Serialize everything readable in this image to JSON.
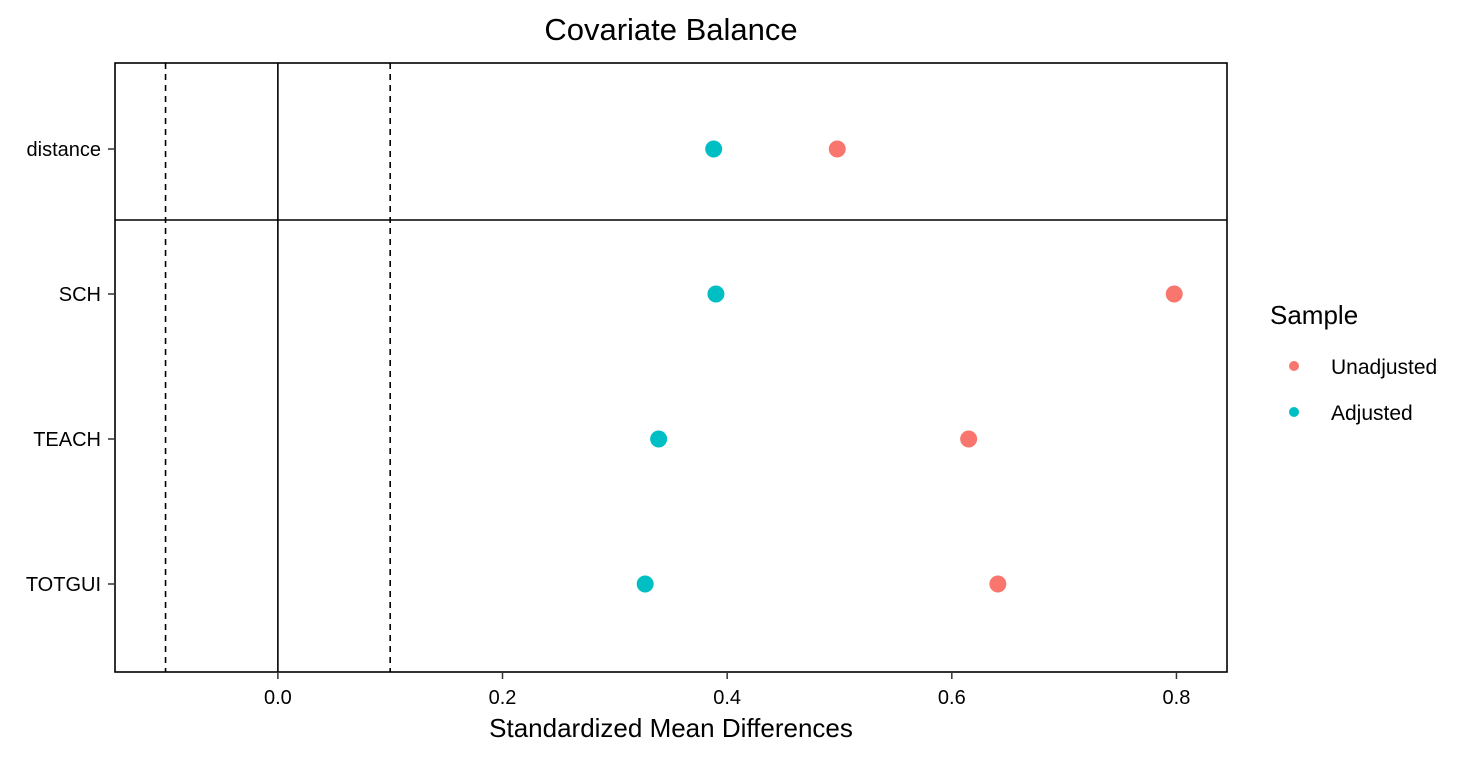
{
  "chart_data": {
    "type": "scatter",
    "title": "Covariate Balance",
    "xlabel": "Standardized Mean Differences",
    "ylabel": "",
    "xlim": [
      -0.145,
      0.845
    ],
    "x_ticks": [
      0.0,
      0.2,
      0.4,
      0.6,
      0.8
    ],
    "x_tick_labels": [
      "0.0",
      "0.2",
      "0.4",
      "0.6",
      "0.8"
    ],
    "categories": [
      "distance",
      "SCH",
      "TEACH",
      "TOTGUI"
    ],
    "series": [
      {
        "name": "Unadjusted",
        "color": "#F8766D",
        "values": [
          0.498,
          0.798,
          0.615,
          0.641
        ]
      },
      {
        "name": "Adjusted",
        "color": "#00BFC4",
        "values": [
          0.388,
          0.39,
          0.339,
          0.327
        ]
      }
    ],
    "reference_lines": [
      {
        "x": 0.0,
        "style": "solid"
      },
      {
        "x": -0.1,
        "style": "dashed"
      },
      {
        "x": 0.1,
        "style": "dashed"
      }
    ],
    "legend": {
      "title": "Sample",
      "position": "right"
    },
    "grid": false
  }
}
